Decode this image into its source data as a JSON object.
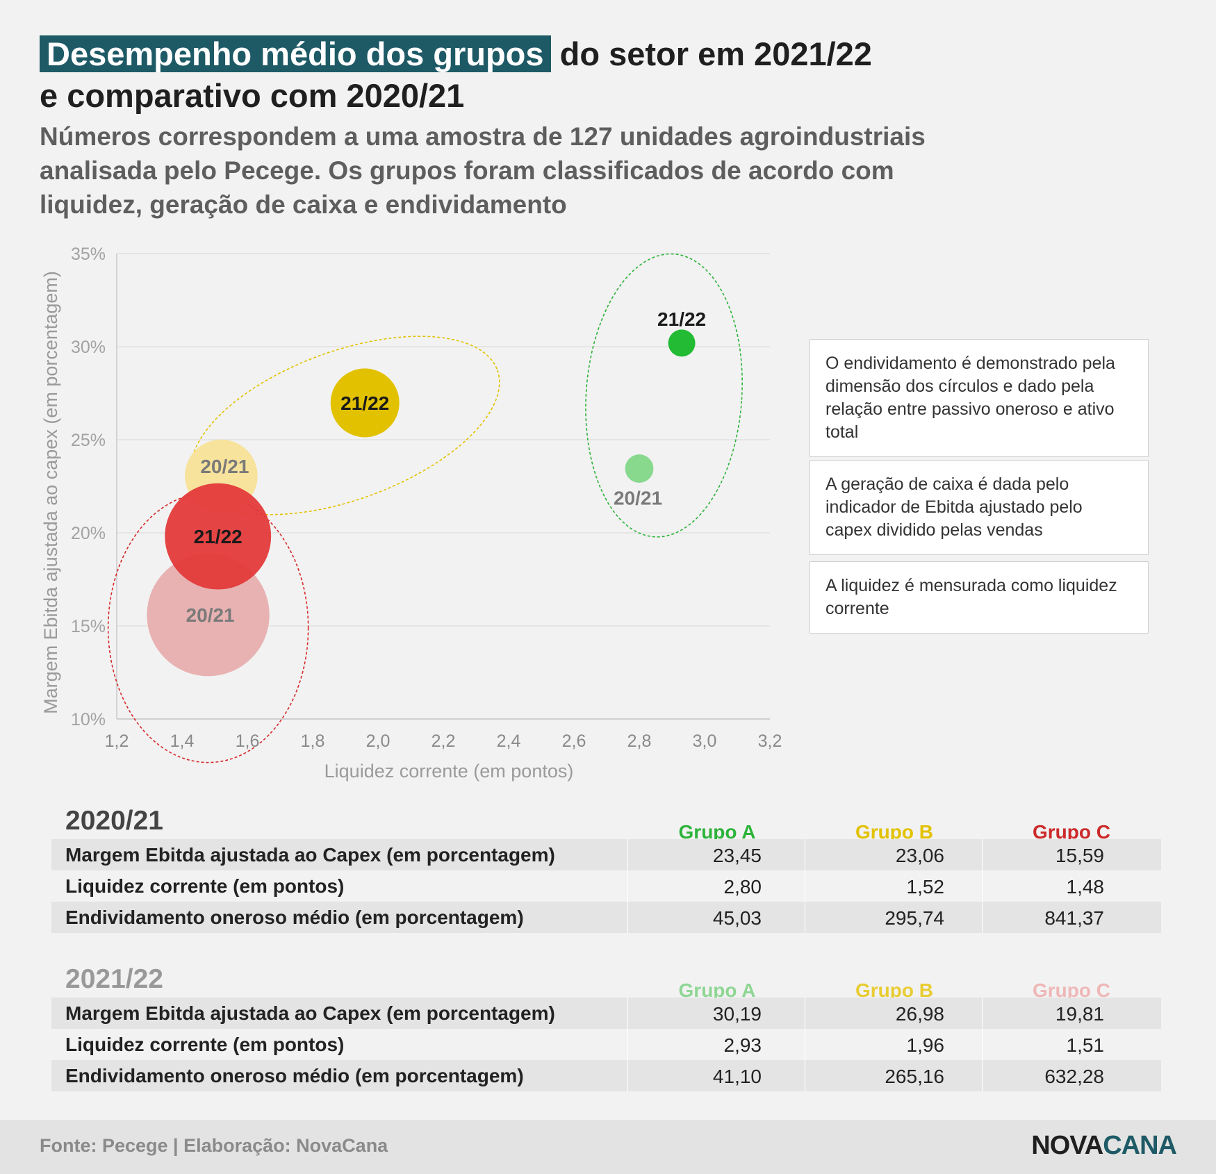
{
  "title": {
    "highlight": "Desempenho médio dos grupos",
    "rest": " do setor em 2021/22",
    "line2": "e comparativo com 2020/21"
  },
  "subtitle": "Números correspondem a uma amostra de 127 unidades agroindustriais analisada pelo Pecege. Os grupos foram classificados de acordo com liquidez, geração de caixa e endividamento",
  "chart_data": {
    "type": "scatter",
    "title": "",
    "xlabel": "Liquidez corrente (em pontos)",
    "ylabel": "Margem Ebitda ajustada ao capex (em porcentagem)",
    "xlim": [
      1.2,
      3.2
    ],
    "ylim": [
      10,
      35
    ],
    "x_ticks": [
      "1,2",
      "1,4",
      "1,6",
      "1,8",
      "2,0",
      "2,2",
      "2,4",
      "2,6",
      "2,8",
      "3,0",
      "3,2"
    ],
    "y_ticks": [
      "10%",
      "15%",
      "20%",
      "25%",
      "30%",
      "35%"
    ],
    "grid": "horizontal",
    "size_variable": "Endividamento oneroso médio (em porcentagem)",
    "points": [
      {
        "group": "Grupo C",
        "label": "20/21",
        "x": 1.48,
        "y": 15.59,
        "size": 841.37,
        "color": "#e8b2b2",
        "label_color": "#7a7a7a"
      },
      {
        "group": "Grupo B",
        "label": "20/21",
        "x": 1.52,
        "y": 23.06,
        "size": 295.74,
        "color": "#f7e39b",
        "label_color": "#7a7a7a"
      },
      {
        "group": "Grupo C",
        "label": "21/22",
        "x": 1.51,
        "y": 19.81,
        "size": 632.28,
        "color": "#e33a3a",
        "label_color": "#1a1a1a"
      },
      {
        "group": "Grupo B",
        "label": "21/22",
        "x": 1.96,
        "y": 26.98,
        "size": 265.16,
        "color": "#e2c200",
        "label_color": "#1a1a1a"
      },
      {
        "group": "Grupo A",
        "label": "20/21",
        "x": 2.8,
        "y": 23.45,
        "size": 45.03,
        "color": "#88d88e",
        "label_color": "#7a7a7a"
      },
      {
        "group": "Grupo A",
        "label": "21/22",
        "x": 2.93,
        "y": 30.19,
        "size": 41.1,
        "color": "#22bb33",
        "label_color": "#1a1a1a"
      }
    ],
    "group_outlines": [
      {
        "group": "Grupo A",
        "color": "#2db33a"
      },
      {
        "group": "Grupo B",
        "color": "#e2c200"
      },
      {
        "group": "Grupo C",
        "color": "#d62a2a"
      }
    ]
  },
  "notes": [
    "O endividamento é demonstrado pela dimensão dos círculos e dado pela relação entre passivo oneroso e ativo total",
    "A geração de caixa é dada pelo indicador de Ebitda ajustado pelo capex dividido pelas vendas",
    "A liquidez é mensurada como liquidez corrente"
  ],
  "tables": [
    {
      "title": "2020/21",
      "title_color": "#444444",
      "groups": [
        {
          "name": "Grupo A",
          "color": "#2db33a"
        },
        {
          "name": "Grupo B",
          "color": "#e2c200"
        },
        {
          "name": "Grupo C",
          "color": "#cc2a2a"
        }
      ],
      "rows": [
        {
          "label": "Margem Ebitda ajustada ao Capex (em porcentagem)",
          "values": [
            "23,45",
            "23,06",
            "15,59"
          ]
        },
        {
          "label": "Liquidez corrente (em pontos)",
          "values": [
            "2,80",
            "1,52",
            "1,48"
          ]
        },
        {
          "label": "Endividamento oneroso médio (em porcentagem)",
          "values": [
            "45,03",
            "295,74",
            "841,37"
          ]
        }
      ]
    },
    {
      "title": "2021/22",
      "title_color": "#999999",
      "groups": [
        {
          "name": "Grupo A",
          "color": "#8fd694"
        },
        {
          "name": "Grupo B",
          "color": "#e8cc33"
        },
        {
          "name": "Grupo C",
          "color": "#efb7b7"
        }
      ],
      "rows": [
        {
          "label": "Margem Ebitda ajustada ao Capex (em porcentagem)",
          "values": [
            "30,19",
            "26,98",
            "19,81"
          ]
        },
        {
          "label": "Liquidez corrente (em pontos)",
          "values": [
            "2,93",
            "1,96",
            "1,51"
          ]
        },
        {
          "label": "Endividamento oneroso médio (em porcentagem)",
          "values": [
            "41,10",
            "265,16",
            "632,28"
          ]
        }
      ]
    }
  ],
  "footer": {
    "source": "Fonte: Pecege | Elaboração: NovaCana",
    "logo_part1": "NOVA",
    "logo_part2": "CANA"
  }
}
